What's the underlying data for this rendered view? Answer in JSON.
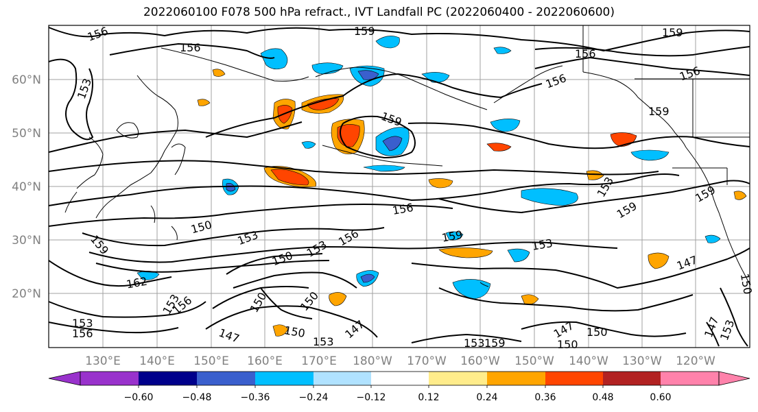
{
  "title": "2022060100 F078 500 hPa refract., IVT Landfall PC (2022060400 - 2022060600)",
  "lat_labels": [
    "60°N",
    "50°N",
    "40°N",
    "30°N",
    "20°N"
  ],
  "lon_labels": [
    "130°E",
    "140°E",
    "150°E",
    "160°E",
    "170°E",
    "180°W",
    "170°W",
    "160°W",
    "150°W",
    "140°W",
    "130°W",
    "120°W"
  ],
  "contour_labels": [
    "156",
    "156",
    "159",
    "156",
    "159",
    "153",
    "156",
    "159",
    "156",
    "159",
    "153",
    "159",
    "159",
    "156",
    "150",
    "153",
    "153",
    "156",
    "159",
    "150",
    "153",
    "159",
    "162",
    "153",
    "156",
    "150",
    "150",
    "147",
    "150",
    "153",
    "147",
    "153",
    "159",
    "147",
    "150",
    "150",
    "147",
    "153",
    "153",
    "156",
    "150",
    "147"
  ],
  "colorbar": {
    "ticks": [
      "−0.60",
      "−0.48",
      "−0.36",
      "−0.24",
      "−0.12",
      "0.12",
      "0.24",
      "0.36",
      "0.48",
      "0.60"
    ],
    "colors": [
      "#9932cc",
      "#00008b",
      "#3a5fcd",
      "#00bfff",
      "#b0e2ff",
      "#ffffff",
      "#ffec8b",
      "#ffa500",
      "#ff4500",
      "#b22222",
      "#ff82ab",
      "#ff82ab"
    ]
  },
  "palette": {
    "contour": "#000000",
    "coast": "#000000",
    "grid": "#a0a0a0",
    "axis_label": "#808080"
  }
}
